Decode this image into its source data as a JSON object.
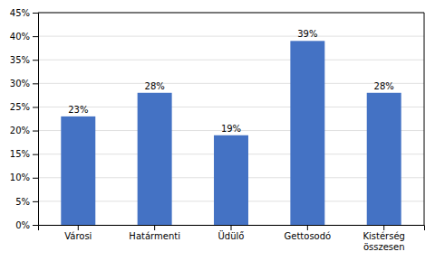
{
  "chart_data": {
    "type": "bar",
    "categories": [
      "Városi",
      "Határmenti",
      "Üdülő",
      "Gettosodó",
      "Kistérség\nösszesen"
    ],
    "values": [
      0.23,
      0.28,
      0.19,
      0.39,
      0.28
    ],
    "value_labels": [
      "23%",
      "28%",
      "19%",
      "39%",
      "28%"
    ],
    "data_labels": true,
    "color": "#4472C4",
    "ylim": [
      0,
      0.45
    ],
    "yticks": [
      {
        "value": 0.0,
        "label": "0%"
      },
      {
        "value": 0.05,
        "label": "5%"
      },
      {
        "value": 0.1,
        "label": "10%"
      },
      {
        "value": 0.15,
        "label": "15%"
      },
      {
        "value": 0.2,
        "label": "20%"
      },
      {
        "value": 0.25,
        "label": "25%"
      },
      {
        "value": 0.3,
        "label": "30%"
      },
      {
        "value": 0.35,
        "label": "35%"
      },
      {
        "value": 0.4,
        "label": "40%"
      },
      {
        "value": 0.45,
        "label": "45%"
      }
    ],
    "grid": true
  }
}
